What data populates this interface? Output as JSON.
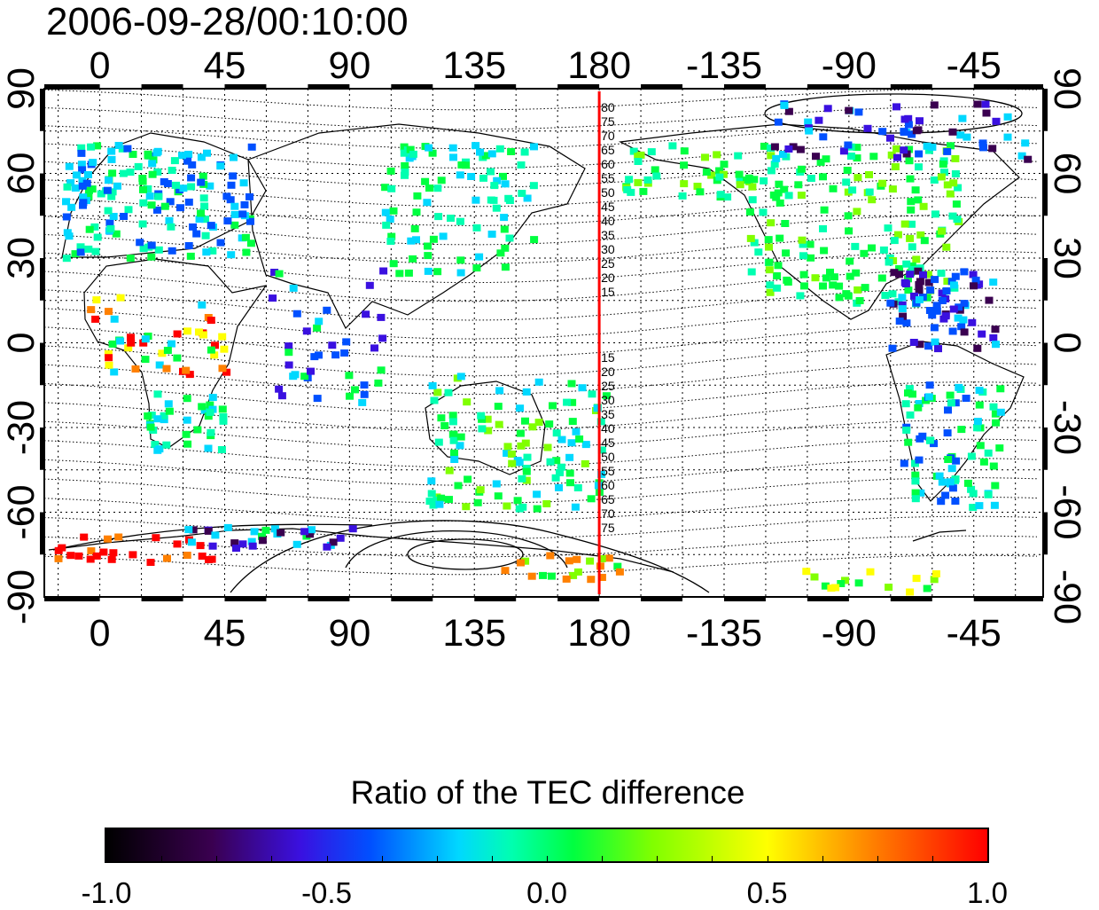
{
  "title": "2006-09-28/00:10:00",
  "map": {
    "top_lon_labels": [
      "0",
      "45",
      "90",
      "135",
      "180",
      "-135",
      "-90",
      "-45"
    ],
    "bottom_lon_labels": [
      "0",
      "45",
      "90",
      "135",
      "180",
      "-135",
      "-90",
      "-45"
    ],
    "left_lat_labels": [
      "90",
      "60",
      "30",
      "0",
      "-30",
      "-60",
      "-90"
    ],
    "right_lat_labels": [
      "90",
      "60",
      "30",
      "0",
      "-30",
      "-60",
      "-90"
    ],
    "terminator_longitude": 180,
    "terminator_color": "#ff0000",
    "terminator_labels_north": [
      "80",
      "75",
      "70",
      "65",
      "60",
      "55",
      "50",
      "45",
      "40",
      "35",
      "30",
      "25",
      "20",
      "15"
    ],
    "terminator_labels_south": [
      "15",
      "20",
      "25",
      "30",
      "35",
      "40",
      "45",
      "50",
      "55",
      "60",
      "65",
      "70",
      "75"
    ],
    "grid": true
  },
  "colorbar": {
    "label": "Ratio of the TEC difference",
    "ticks": [
      "-1.0",
      "-0.5",
      "0.0",
      "0.5",
      "1.0"
    ],
    "min": -1.0,
    "max": 1.0,
    "colors": [
      "#000000",
      "#3a0050",
      "#3a10e0",
      "#0050ff",
      "#00d8ff",
      "#00ffb0",
      "#00ff40",
      "#80ff00",
      "#ffff00",
      "#ff8000",
      "#ff0000"
    ]
  }
}
